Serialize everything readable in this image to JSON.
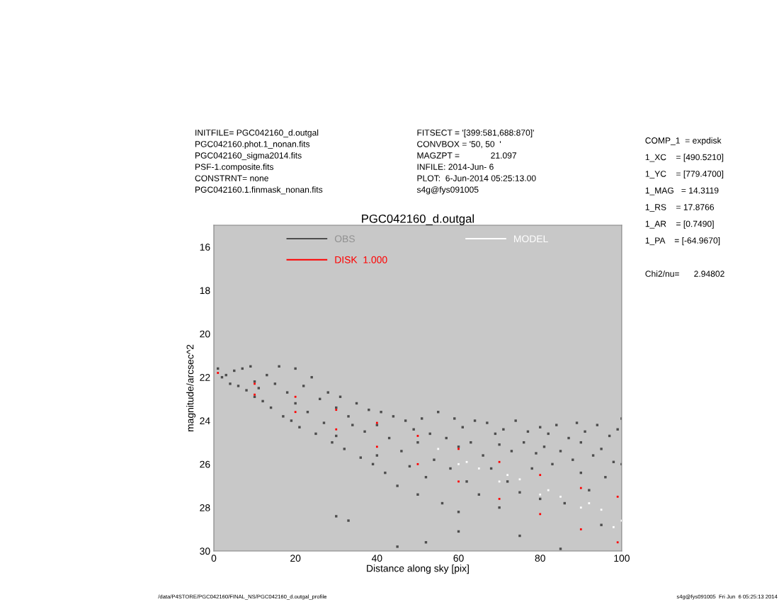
{
  "chart_data": {
    "type": "scatter",
    "title": "PGC042160_d.outgal",
    "xlabel": "Distance along sky [pix]",
    "ylabel": "magnitude/arcsec^2",
    "xlim": [
      0,
      100
    ],
    "xticks": [
      0,
      20,
      40,
      60,
      80,
      100
    ],
    "ylim": [
      30,
      15
    ],
    "yticks": [
      16,
      18,
      20,
      22,
      24,
      26,
      28,
      30
    ],
    "grid": false,
    "legend": "top",
    "marker": "square",
    "annotations": [
      "INITFILE= PGC042160_d.outgal\nPGC042160.phot.1_nonan.fits\nPGC042160_sigma2014.fits\nPSF-1.composite.fits\nCONSTRNT= none\nPGC042160.1.finmask_nonan.fits",
      "FITSECT = '[399:581,688:870]'\nCONVBOX = '50, 50  '\nMAGZPT =             21.097\nINFILE: 2014-Jun- 6\nPLOT:  6-Jun-2014 05:25:13.00\ns4g@fys091005",
      "COMP_1  = expdisk\n1_XC    = [490.5210]\n1_YC    = [779.4700]\n1_MAG   = 14.3119\n1_RS    = 17.8766\n1_AR    = [0.7490]\n1_PA    = [-64.9670]\n\nChi2/nu=      2.94802",
      "/data/P4STORE/PGC042160/FINAL_NS/PGC042160_d.outgal_profile",
      "s4g@fys091005  Fri Jun  6 05:25:13 2014"
    ],
    "series": [
      {
        "name": "OBS",
        "color": "#4d4d4d",
        "x": [
          1,
          2,
          3,
          4,
          5,
          6,
          7,
          8,
          9,
          10,
          10,
          11,
          12,
          13,
          14,
          15,
          16,
          17,
          18,
          19,
          20,
          20,
          21,
          22,
          23,
          24,
          25,
          26,
          27,
          28,
          29,
          30,
          30,
          31,
          32,
          33,
          34,
          35,
          36,
          37,
          38,
          39,
          40,
          40,
          41,
          42,
          43,
          44,
          45,
          46,
          47,
          48,
          49,
          50,
          50,
          51,
          52,
          53,
          54,
          55,
          56,
          57,
          58,
          59,
          60,
          60,
          61,
          62,
          63,
          64,
          65,
          66,
          67,
          68,
          69,
          70,
          70,
          71,
          72,
          73,
          74,
          75,
          76,
          77,
          78,
          79,
          80,
          80,
          81,
          82,
          83,
          84,
          85,
          86,
          87,
          88,
          89,
          90,
          90,
          91,
          92,
          93,
          94,
          95,
          96,
          97,
          98,
          99,
          100,
          100,
          30,
          45,
          60,
          85,
          95,
          33,
          52,
          75
        ],
        "values": [
          21.6,
          22.0,
          21.9,
          22.3,
          21.7,
          22.4,
          21.6,
          22.6,
          21.5,
          22.9,
          22.2,
          22.5,
          23.1,
          21.9,
          23.4,
          22.3,
          21.5,
          23.8,
          22.7,
          24.0,
          21.6,
          23.2,
          24.3,
          22.4,
          23.6,
          22.0,
          24.6,
          23.0,
          24.1,
          22.7,
          25.0,
          23.4,
          24.7,
          22.9,
          25.3,
          23.8,
          24.2,
          23.2,
          25.7,
          24.5,
          23.5,
          26.0,
          24.2,
          25.6,
          23.6,
          26.4,
          24.8,
          23.8,
          27.0,
          25.4,
          24.0,
          26.1,
          24.4,
          25.0,
          27.4,
          23.9,
          26.6,
          24.6,
          25.8,
          23.6,
          27.8,
          24.8,
          26.2,
          23.9,
          25.2,
          28.2,
          24.3,
          26.8,
          25.0,
          24.0,
          27.4,
          25.6,
          24.1,
          26.2,
          24.6,
          25.1,
          28.0,
          24.4,
          26.8,
          25.4,
          24.0,
          27.3,
          25.0,
          24.5,
          26.2,
          25.5,
          24.3,
          27.6,
          25.2,
          24.6,
          26.0,
          24.2,
          25.4,
          27.8,
          24.8,
          25.8,
          24.1,
          26.4,
          25.0,
          24.5,
          27.2,
          25.6,
          24.2,
          25.3,
          26.6,
          24.7,
          25.9,
          24.4,
          23.9,
          26.0,
          28.4,
          29.8,
          29.1,
          29.9,
          28.8,
          28.6,
          29.6,
          29.3
        ]
      },
      {
        "name": "DISK  1.000",
        "color": "#ff0000",
        "x": [
          1,
          10,
          20,
          30,
          40,
          50,
          60,
          70,
          80,
          90,
          99,
          10,
          20,
          30,
          40,
          50,
          60,
          70,
          80,
          90,
          99
        ],
        "values": [
          21.8,
          22.3,
          22.9,
          23.5,
          24.1,
          24.7,
          25.3,
          25.9,
          26.5,
          27.1,
          27.5,
          22.8,
          23.6,
          24.4,
          25.2,
          26.0,
          26.8,
          27.6,
          28.3,
          29.0,
          29.6
        ]
      },
      {
        "name": "MODEL",
        "color": "#ffffff",
        "x": [
          55,
          60,
          65,
          70,
          75,
          80,
          85,
          90,
          95,
          100,
          62,
          72,
          82,
          92,
          98
        ],
        "values": [
          25.3,
          26.0,
          26.2,
          26.8,
          26.7,
          27.4,
          27.5,
          28.0,
          28.1,
          28.6,
          25.9,
          26.5,
          27.2,
          27.8,
          28.9
        ]
      }
    ]
  }
}
